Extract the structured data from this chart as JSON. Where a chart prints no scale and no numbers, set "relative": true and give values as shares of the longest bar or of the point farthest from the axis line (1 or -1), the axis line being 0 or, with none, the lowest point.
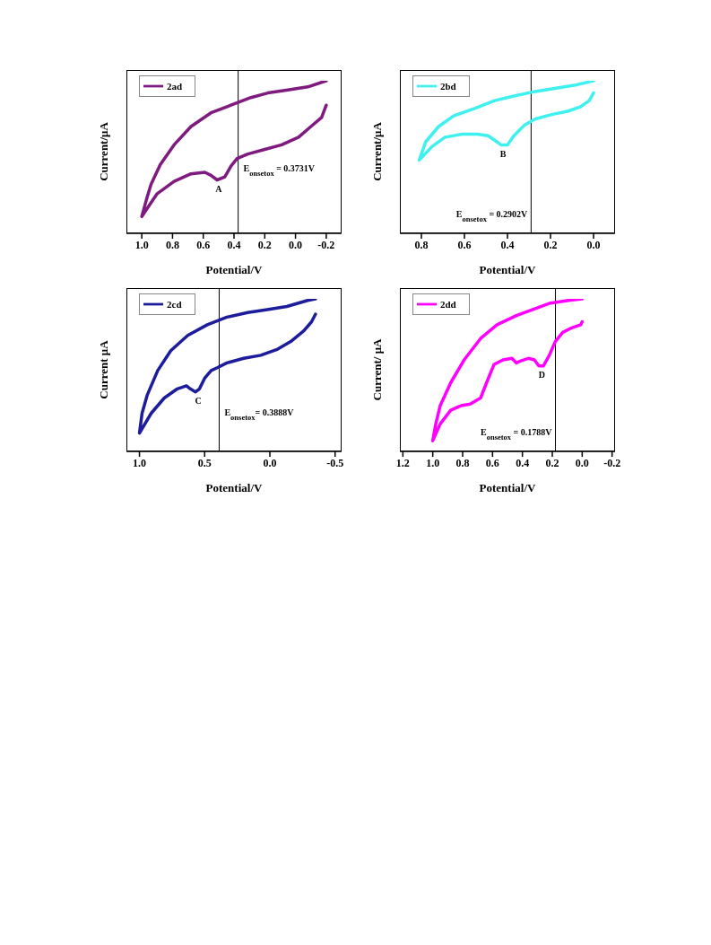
{
  "chart_data": [
    {
      "type": "line",
      "relative": true,
      "xlabel": "Potential/V",
      "ylabel": "Current/μA",
      "legend": "top left",
      "xlim": [
        1.1,
        -0.3
      ],
      "xticks": [
        {
          "value": 1,
          "label": "1.0"
        },
        {
          "value": 0.8,
          "label": "0.8"
        },
        {
          "value": 0.6,
          "label": "0.6"
        },
        {
          "value": 0.4,
          "label": "0.4"
        },
        {
          "value": 0.2,
          "label": "0.2"
        },
        {
          "value": 0,
          "label": "0.0"
        },
        {
          "value": -0.2,
          "label": "-0.2"
        }
      ],
      "series": [
        {
          "name": "2ad",
          "color": "#7f1a7f",
          "x": [
            -0.2,
            -0.17,
            -0.1,
            -0.02,
            0.09,
            0.2,
            0.31,
            0.38,
            0.42,
            0.46,
            0.51,
            0.55,
            0.59,
            0.68,
            0.79,
            0.9,
            0.96,
            1.0,
            0.97,
            0.94,
            0.88,
            0.79,
            0.68,
            0.55,
            0.42,
            0.29,
            0.18,
            0.05,
            -0.08,
            -0.2
          ],
          "values": [
            0.84,
            0.76,
            0.7,
            0.63,
            0.58,
            0.55,
            0.52,
            0.49,
            0.44,
            0.37,
            0.35,
            0.38,
            0.4,
            0.39,
            0.34,
            0.26,
            0.17,
            0.11,
            0.22,
            0.32,
            0.45,
            0.58,
            0.7,
            0.79,
            0.84,
            0.89,
            0.92,
            0.94,
            0.96,
            1.0
          ]
        }
      ],
      "ref_lines": [
        {
          "axis": "x",
          "value": 0.3731,
          "label": "E$_{onsetox}$ = 0.3731V"
        }
      ],
      "annotations": [
        {
          "text": "A",
          "x": 0.5,
          "y": 0.35
        }
      ]
    },
    {
      "type": "line",
      "relative": true,
      "xlabel": "Potential/V",
      "ylabel": "Current/μA",
      "legend": "top left",
      "xlim": [
        0.9,
        -0.1
      ],
      "xticks": [
        {
          "value": 0.8,
          "label": "0.8"
        },
        {
          "value": 0.6,
          "label": "0.6"
        },
        {
          "value": 0.4,
          "label": "0.4"
        },
        {
          "value": 0.2,
          "label": "0.2"
        },
        {
          "value": 0,
          "label": "0.0"
        }
      ],
      "series": [
        {
          "name": "2bd",
          "color": "#3ff0f0",
          "x": [
            0.0,
            0.02,
            0.06,
            0.12,
            0.19,
            0.27,
            0.32,
            0.37,
            0.4,
            0.43,
            0.46,
            0.49,
            0.54,
            0.61,
            0.69,
            0.75,
            0.81,
            0.78,
            0.72,
            0.65,
            0.55,
            0.46,
            0.37,
            0.27,
            0.18,
            0.09,
            0.0
          ],
          "values": [
            0.92,
            0.87,
            0.83,
            0.8,
            0.78,
            0.75,
            0.71,
            0.64,
            0.58,
            0.58,
            0.61,
            0.64,
            0.65,
            0.65,
            0.63,
            0.57,
            0.48,
            0.6,
            0.7,
            0.77,
            0.82,
            0.87,
            0.9,
            0.93,
            0.95,
            0.97,
            1.0
          ]
        }
      ],
      "ref_lines": [
        {
          "axis": "x",
          "value": 0.2902,
          "label": "E$_{onsetox}$ = 0.2902V"
        }
      ],
      "annotations": [
        {
          "text": "B",
          "x": 0.42,
          "y": 0.58
        }
      ]
    },
    {
      "type": "line",
      "relative": true,
      "xlabel": "Potential/V",
      "ylabel": "Current μA",
      "legend": "top left",
      "xlim": [
        1.1,
        -0.55
      ],
      "xticks": [
        {
          "value": 1,
          "label": "1.0"
        },
        {
          "value": 0.5,
          "label": "0.5"
        },
        {
          "value": 0,
          "label": "0.0"
        },
        {
          "value": -0.5,
          "label": "-0.5"
        }
      ],
      "series": [
        {
          "name": "2cd",
          "color": "#1c1c9c",
          "x": [
            -0.35,
            -0.32,
            -0.26,
            -0.16,
            -0.06,
            0.07,
            0.2,
            0.33,
            0.4,
            0.45,
            0.5,
            0.54,
            0.57,
            0.61,
            0.64,
            0.71,
            0.81,
            0.91,
            1.0,
            0.98,
            0.94,
            0.86,
            0.76,
            0.63,
            0.48,
            0.33,
            0.17,
            0.02,
            -0.13,
            -0.29,
            -0.35
          ],
          "values": [
            0.9,
            0.85,
            0.79,
            0.72,
            0.67,
            0.63,
            0.61,
            0.58,
            0.55,
            0.53,
            0.48,
            0.41,
            0.39,
            0.41,
            0.43,
            0.41,
            0.35,
            0.25,
            0.12,
            0.25,
            0.37,
            0.53,
            0.66,
            0.76,
            0.83,
            0.88,
            0.91,
            0.93,
            0.95,
            0.99,
            1.0
          ]
        }
      ],
      "ref_lines": [
        {
          "axis": "x",
          "value": 0.3888,
          "label": "E$_{onsetox}$= 0.3888V"
        }
      ],
      "annotations": [
        {
          "text": "C",
          "x": 0.55,
          "y": 0.39
        }
      ]
    },
    {
      "type": "line",
      "relative": true,
      "xlabel": "Potential/V",
      "ylabel": "Current/ μA",
      "legend": "top left",
      "xlim": [
        1.22,
        -0.22
      ],
      "xticks": [
        {
          "value": 1.2,
          "label": "1.2"
        },
        {
          "value": 1,
          "label": "1.0"
        },
        {
          "value": 0.8,
          "label": "0.8"
        },
        {
          "value": 0.6,
          "label": "0.6"
        },
        {
          "value": 0.4,
          "label": "0.4"
        },
        {
          "value": 0.2,
          "label": "0.2"
        },
        {
          "value": 0,
          "label": "0.0"
        },
        {
          "value": -0.2,
          "label": "-0.2"
        }
      ],
      "series": [
        {
          "name": "2dd",
          "color": "#ff00ff",
          "x": [
            0.0,
            0.01,
            0.07,
            0.13,
            0.18,
            0.22,
            0.26,
            0.29,
            0.32,
            0.36,
            0.42,
            0.44,
            0.47,
            0.53,
            0.59,
            0.64,
            0.68,
            0.75,
            0.81,
            0.88,
            0.95,
            1.0,
            0.98,
            0.95,
            0.88,
            0.79,
            0.68,
            0.57,
            0.44,
            0.33,
            0.22,
            0.09,
            0.0
          ],
          "values": [
            0.85,
            0.83,
            0.81,
            0.78,
            0.72,
            0.63,
            0.56,
            0.56,
            0.6,
            0.61,
            0.59,
            0.58,
            0.61,
            0.6,
            0.57,
            0.45,
            0.35,
            0.31,
            0.3,
            0.27,
            0.18,
            0.07,
            0.18,
            0.3,
            0.45,
            0.6,
            0.74,
            0.83,
            0.89,
            0.93,
            0.97,
            0.99,
            1.0
          ]
        }
      ],
      "ref_lines": [
        {
          "axis": "x",
          "value": 0.1788,
          "label": "E$_{onsetox}$ = 0.1788V"
        }
      ],
      "annotations": [
        {
          "text": "D",
          "x": 0.27,
          "y": 0.56
        }
      ]
    }
  ]
}
